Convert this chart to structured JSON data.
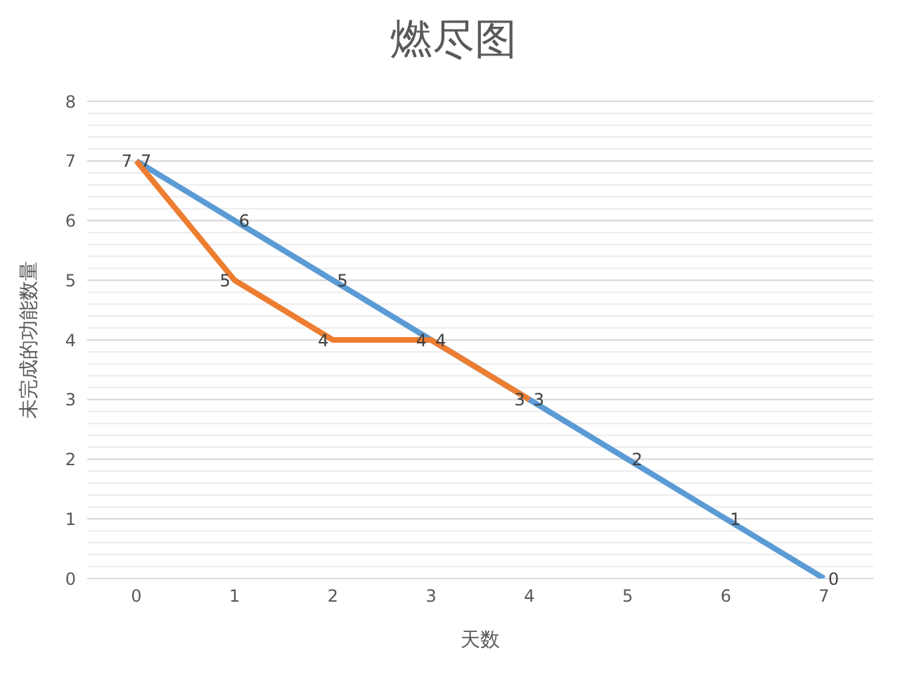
{
  "chart_data": {
    "type": "line",
    "title": "燃尽图",
    "xlabel": "天数",
    "ylabel": "未完成的功能数量",
    "categories": [
      "0",
      "1",
      "2",
      "3",
      "4",
      "5",
      "6",
      "7"
    ],
    "series": [
      {
        "color": "#5b9bd5",
        "values": [
          7,
          6,
          5,
          4,
          3,
          2,
          1,
          0
        ]
      },
      {
        "color": "#ed7d31",
        "values": [
          7,
          5,
          4,
          4,
          3,
          null,
          null,
          null
        ]
      }
    ],
    "ylim": [
      0,
      8
    ],
    "yticks": [
      0,
      {
        "value": 0.2,
        "label": null
      },
      {
        "value": 0.4,
        "label": null
      },
      {
        "value": 0.6,
        "label": null
      },
      {
        "value": 0.8,
        "label": null
      },
      1,
      {
        "value": 1.2,
        "label": null
      },
      {
        "value": 1.4,
        "label": null
      },
      {
        "value": 1.6,
        "label": null
      },
      {
        "value": 1.8,
        "label": null
      },
      2,
      {
        "value": 2.2,
        "label": null
      },
      {
        "value": 2.4,
        "label": null
      },
      {
        "value": 2.6,
        "label": null
      },
      {
        "value": 2.8,
        "label": null
      },
      3,
      {
        "value": 3.2,
        "label": null
      },
      {
        "value": 3.4,
        "label": null
      },
      {
        "value": 3.6,
        "label": null
      },
      {
        "value": 3.8,
        "label": null
      },
      4,
      {
        "value": 4.2,
        "label": null
      },
      {
        "value": 4.4,
        "label": null
      },
      {
        "value": 4.6,
        "label": null
      },
      {
        "value": 4.8,
        "label": null
      },
      5,
      {
        "value": 5.2,
        "label": null
      },
      {
        "value": 5.4,
        "label": null
      },
      {
        "value": 5.6,
        "label": null
      },
      {
        "value": 5.8,
        "label": null
      },
      6,
      {
        "value": 6.2,
        "label": null
      },
      {
        "value": 6.4,
        "label": null
      },
      {
        "value": 6.6,
        "label": null
      },
      {
        "value": 6.8,
        "label": null
      },
      7,
      {
        "value": 7.2,
        "label": null
      },
      {
        "value": 7.4,
        "label": null
      },
      {
        "value": 7.6,
        "label": null
      },
      {
        "value": 7.8,
        "label": null
      },
      8
    ],
    "grid": "y",
    "data_labels": true,
    "marker": "none",
    "line_style": "solid",
    "legend": false
  }
}
